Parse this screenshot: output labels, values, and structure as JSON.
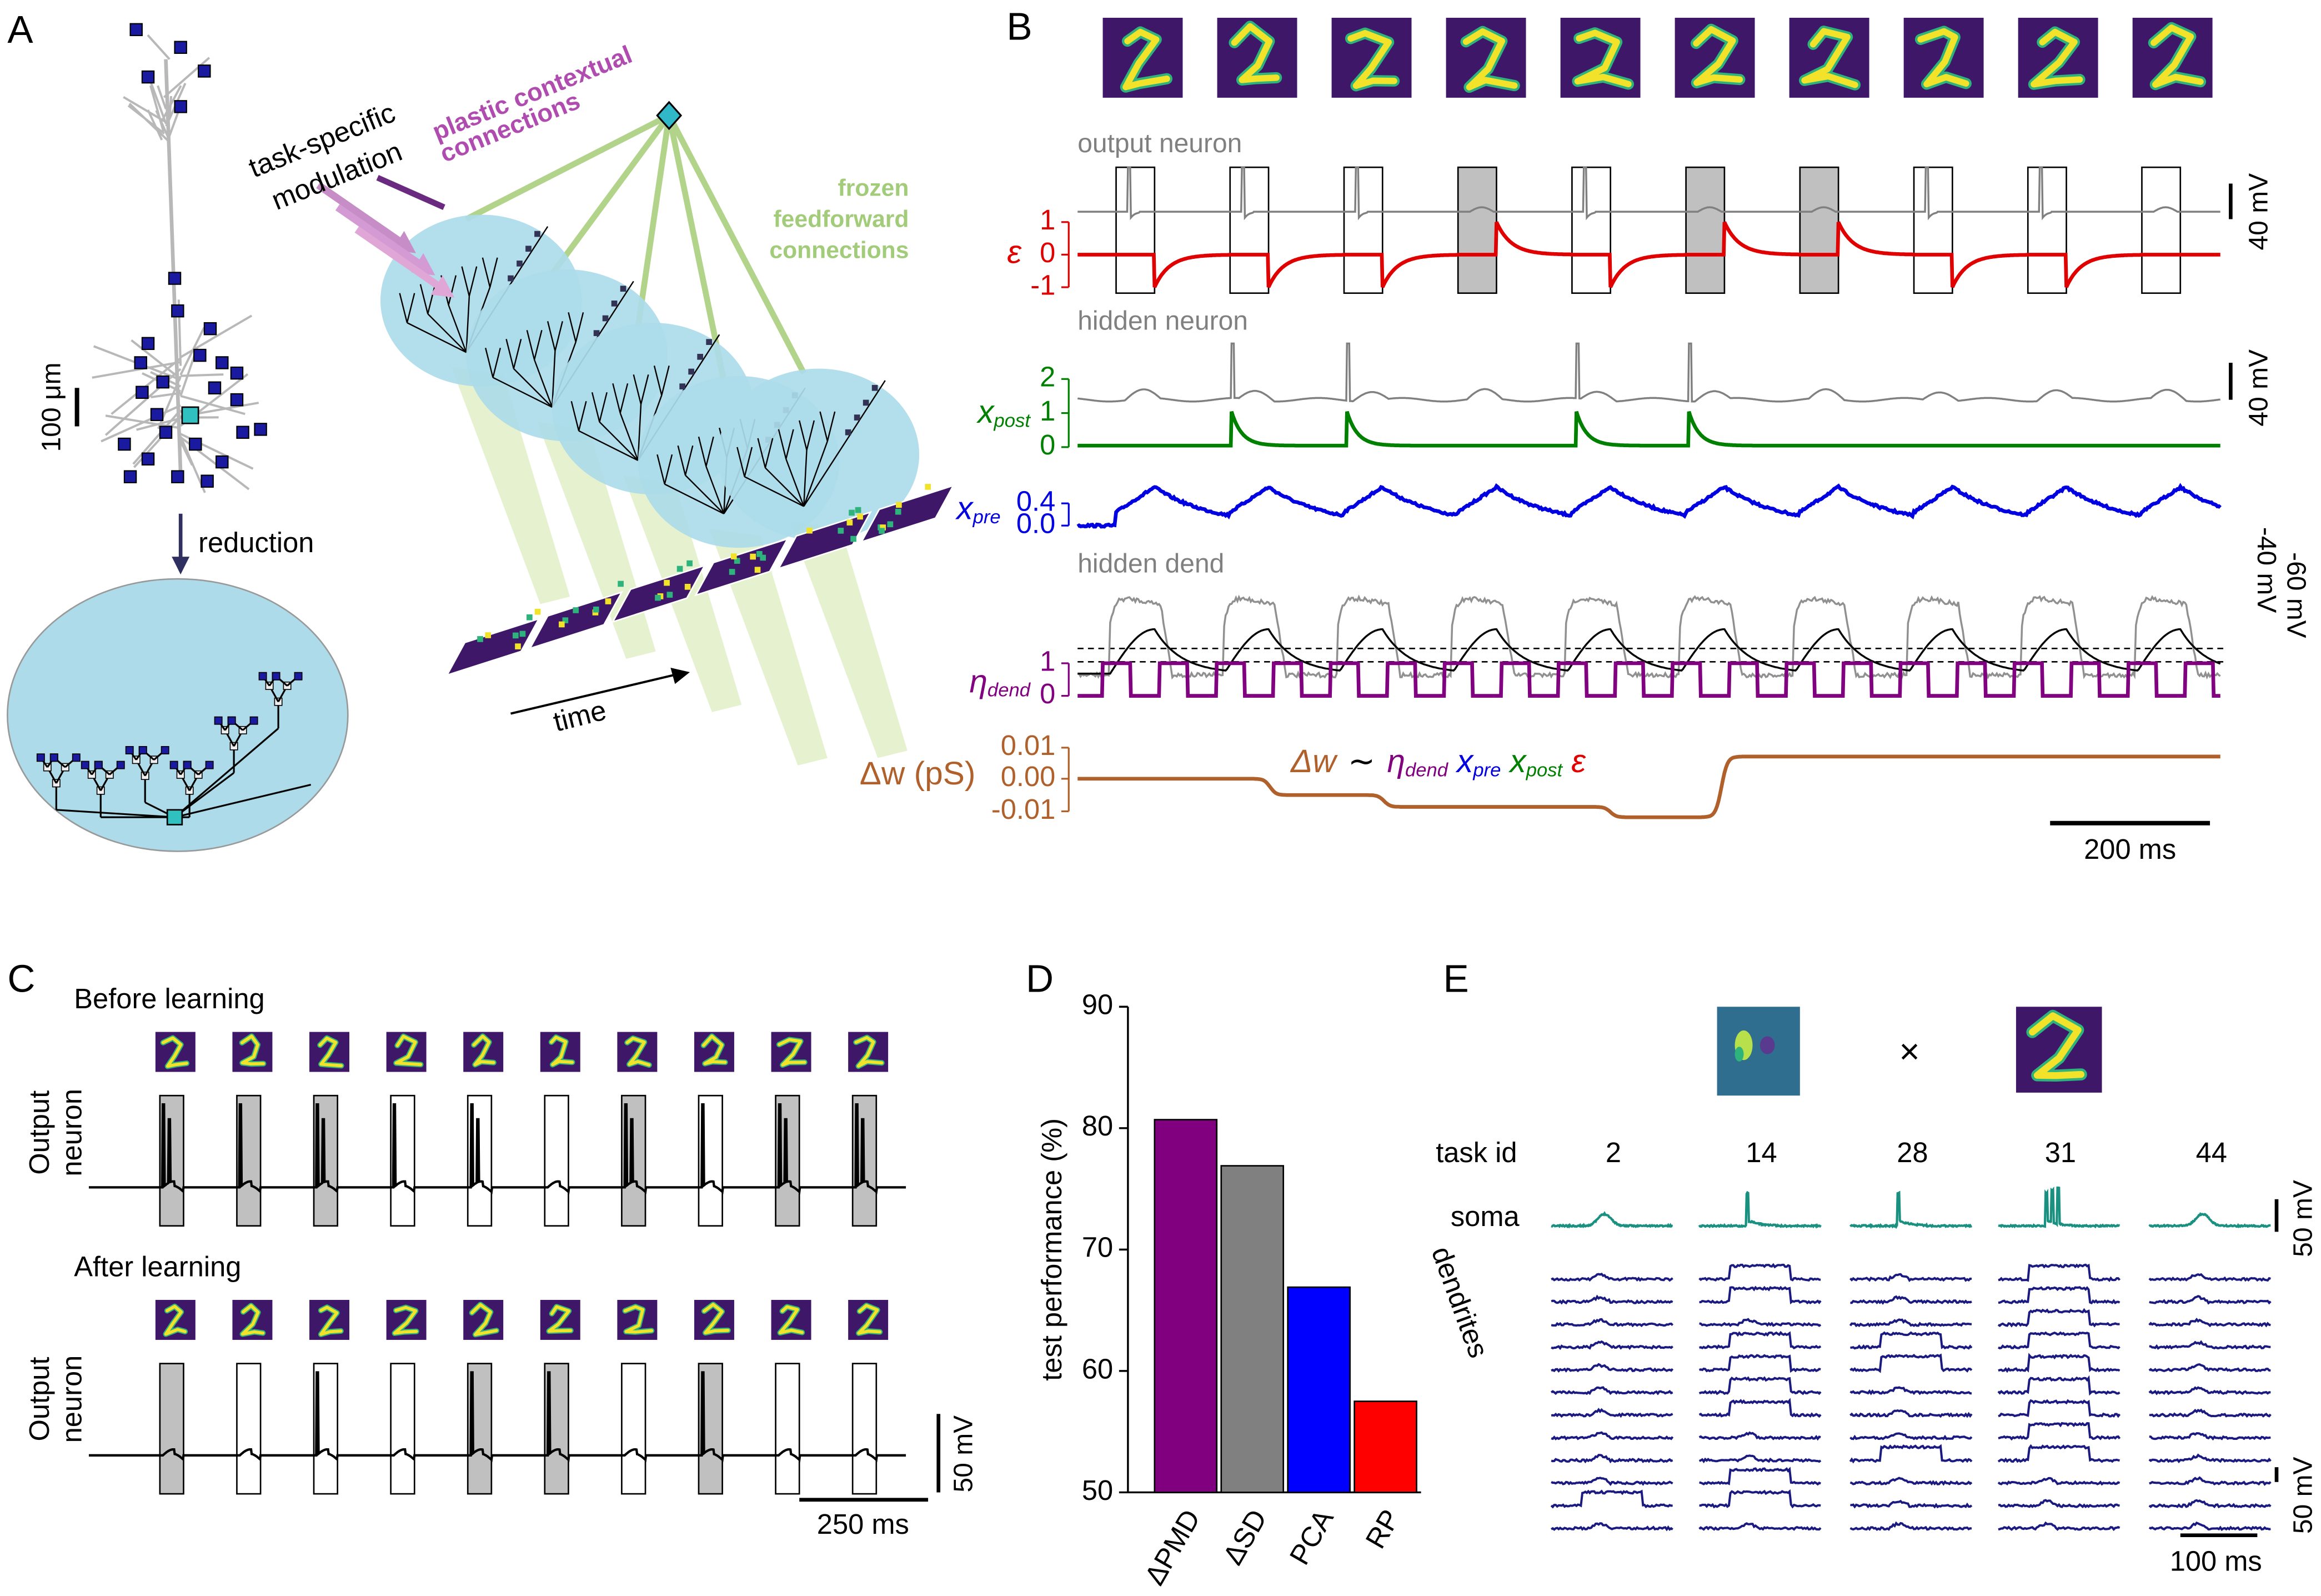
{
  "panel_a": {
    "label": "A",
    "modulation": [
      "task-specific",
      "modulation"
    ],
    "contextual": [
      "plastic contextual",
      "connections"
    ],
    "feedforward": [
      "frozen",
      "feedforward",
      "connections"
    ],
    "scale": "100 μm",
    "reduction": "reduction",
    "time": "time"
  },
  "panel_b": {
    "label": "B",
    "output_neuron": "output neuron",
    "hidden_neuron": "hidden neuron",
    "hidden_dend": "hidden dend",
    "scale_mv": [
      "40 mV",
      "40 mV"
    ],
    "dend_levels": [
      "-40 mV",
      "-60 mV"
    ],
    "epsilon": {
      "symbol": "ε",
      "ticks": [
        "1",
        "0",
        "-1"
      ]
    },
    "x_post": {
      "symbol": "x",
      "sub": "post",
      "ticks": [
        "2",
        "1",
        "0"
      ]
    },
    "x_pre": {
      "symbol": "x",
      "sub": "pre",
      "ticks": [
        "0.4",
        "0.0"
      ]
    },
    "eta_dend": {
      "symbol": "η",
      "sub": "dend",
      "ticks": [
        "1",
        "0"
      ]
    },
    "delta_w": {
      "label": "Δw (pS)",
      "ticks": [
        "0.01",
        "0.00",
        "-0.01"
      ]
    },
    "rule": {
      "lhs": "Δw",
      "tilde": "∼",
      "eta": "η",
      "eta_sub": "dend",
      "xpre": "x",
      "xpre_sub": "pre",
      "xpost": "x",
      "xpost_sub": "post",
      "eps": "ε"
    },
    "time_scale": "200 ms"
  },
  "panel_c": {
    "label": "C",
    "before": "Before learning",
    "after": "After learning",
    "ylabel_before": [
      "Output",
      "neuron"
    ],
    "ylabel_after": [
      "Output",
      "neuron"
    ],
    "scale_mv": "50 mV",
    "time_scale": "250 ms"
  },
  "panel_d": {
    "label": "D"
  },
  "chart_data": {
    "type": "bar",
    "categories": [
      "ΔPMD",
      "ΔSD",
      "PCA",
      "RP"
    ],
    "values": [
      80.7,
      76.9,
      66.9,
      57.5
    ],
    "colors": [
      "#800080",
      "#808080",
      "#0000ff",
      "#ff0000"
    ],
    "ylabel": "test performance (%)",
    "ylim": [
      50,
      90
    ],
    "yticks": [
      50,
      60,
      70,
      80,
      90
    ]
  },
  "panel_e": {
    "label": "E",
    "times": "×",
    "task_id": "task id",
    "tasks": [
      "2",
      "14",
      "28",
      "31",
      "44"
    ],
    "soma": "soma",
    "dendrites": "dendrites",
    "scale_mv": [
      "50 mV",
      "50 mV"
    ],
    "time_scale": "100 ms"
  }
}
